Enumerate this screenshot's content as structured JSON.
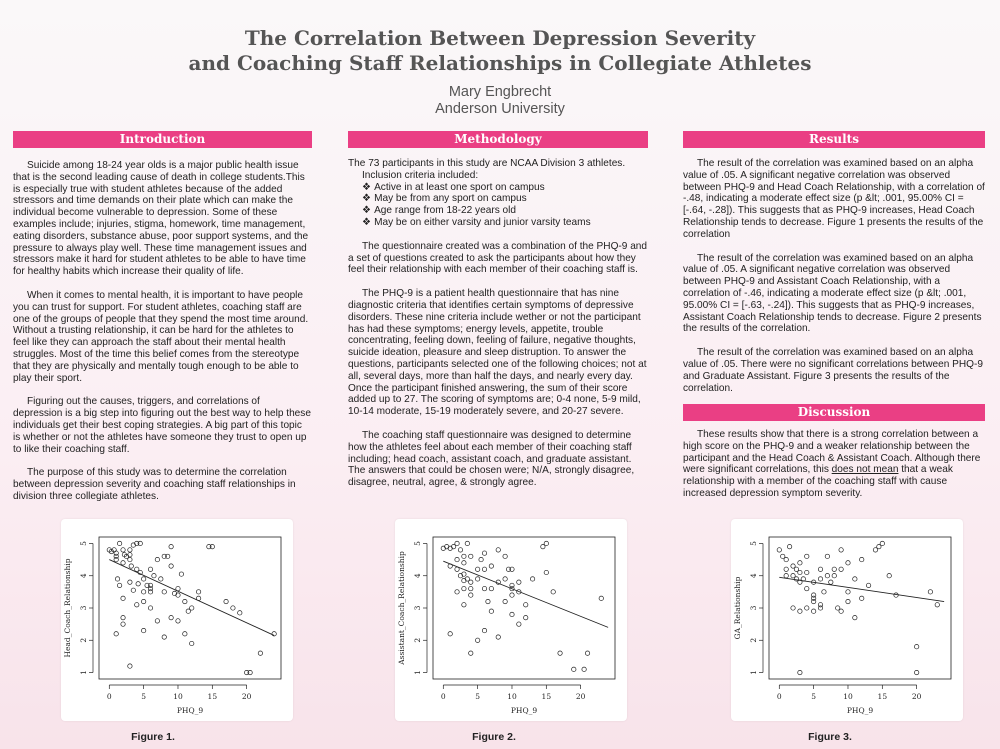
{
  "poster": {
    "title_line1": "The Correlation Between Depression Severity",
    "title_line2": "and Coaching Staff Relationships in Collegiate Athletes",
    "author": "Mary Engbrecht",
    "affiliation": "Anderson University"
  },
  "introduction": {
    "heading": "Introduction",
    "p1": "Suicide among 18-24 year olds is a major public health issue that is the second leading cause of death in college students.This is especially true with student athletes because of the added stressors and time demands on their plate which can make the individual become vulnerable to depression. Some of these examples include; injuries, stigma, homework, time management, eating disorders, substance abuse, poor support systems, and the pressure to always play well. These time management issues and stressors make it hard for student athletes to be able to have time for healthy habits which increase their quality of life.",
    "p2": "When it comes to mental health, it is important to have people you can trust for support. For student athletes, coaching staff are one of the groups of people that they spend the most time around. Without a trusting relationship, it can be hard for the athletes to feel like they can approach the staff about their mental health struggles. Most of the time this belief comes from the stereotype that they are physically and mentally tough enough to be able to play their sport.",
    "p3": "Figuring out the causes, triggers, and correlations of depression is a big step into figuring out the best way to help these individuals get their best coping strategies. A big part of this topic is whether or not the athletes have someone they trust to open up to like their coaching staff.",
    "p4": "The purpose of this study was to determine the correlation between depression severity and coaching staff relationships in division three collegiate athletes."
  },
  "methodology": {
    "heading": "Methodology",
    "intro": "The 73 participants in this study are NCAA Division 3 athletes.",
    "criteria_label": "Inclusion criteria included:",
    "bullet_glyph": "❖",
    "criteria": [
      "Active in at least one sport on campus",
      "May be from any sport on campus",
      "Age range from 18-22 years old",
      "May be on either varsity and junior varsity teams"
    ],
    "p2": "The questionnaire created was a combination of the PHQ-9 and a set of questions created to ask the participants about how they feel their relationship with each member of their coaching staff is.",
    "p3": "The PHQ-9 is a patient health questionnaire that has nine diagnostic criteria that identifies certain symptoms of depressive disorders. These nine criteria include wether or not the participant has had these symptoms; energy levels, appetite, trouble concentrating, feeling down, feeling of failure, negative thoughts, suicide ideation, pleasure and sleep distruption. To answer the questions, participants selected one of the following choices; not at all, several days, more than half the days, and nearly every day. Once the participant finished answering, the sum of their score added up to 27. The scoring of symptoms are; 0-4 none, 5-9 mild, 10-14 moderate, 15-19 moderately severe, and 20-27 severe.",
    "p4": "The coaching staff questionnaire was designed to determine how the athletes feel about each member of their coaching staff including; head coach, assistant coach, and graduate assistant. The answers that could be chosen were; N/A, strongly disagree, disagree, neutral, agree, & strongly agree."
  },
  "results": {
    "heading": "Results",
    "p1": "The result of the correlation was examined based on an alpha value of .05. A significant negative correlation was observed between PHQ-9 and Head Coach Relationship, with a correlation of -.48, indicating a moderate effect size (p &lt; .001, 95.00% CI = [-.64, -.28]). This suggests that as PHQ-9 increases, Head Coach Relationship tends to decrease. Figure 1 presents the results of the correlation",
    "p2": "The result of the correlation was examined based on an alpha value of .05. A significant negative correlation was observed between PHQ-9 and Assistant Coach Relationship, with a correlation of -.46, indicating a moderate effect size (p &lt; .001, 95.00% CI = [-.63, -.24]). This suggests that as PHQ-9 increases, Assistant Coach Relationship tends to decrease. Figure 2 presents the results of the correlation.",
    "p3": "The result of the correlation was examined based on an alpha value of .05. There were no significant correlations between PHQ-9 and Graduate Assistant. Figure 3 presents the results of the correlation."
  },
  "discussion": {
    "heading": "Discussion",
    "p1_a": "These results show that there is a strong correlation between a high score on the PHQ-9 and a weaker relationship between the participant and the Head Coach & Assistant Coach. Although there were significant correlations, this ",
    "p1_u": "does not mean",
    "p1_b": " that a weak relationship with a member of the coaching staff with cause increased depression symptom severity."
  },
  "chart_data": [
    {
      "type": "scatter",
      "caption": "Figure 1.",
      "xlabel": "PHQ_9",
      "ylabel": "Head_Coach_Relationship",
      "xlim": [
        -1.5,
        25
      ],
      "ylim": [
        0.8,
        5.2
      ],
      "xticks": [
        0,
        5,
        10,
        15,
        20
      ],
      "yticks": [
        1,
        2,
        3,
        4,
        5
      ],
      "trendline": {
        "x": [
          0,
          24
        ],
        "y": [
          4.5,
          2.15
        ]
      },
      "points": [
        [
          0,
          4.8
        ],
        [
          0.3,
          4.75
        ],
        [
          0.7,
          4.8
        ],
        [
          1,
          4.7
        ],
        [
          1,
          4.5
        ],
        [
          1.2,
          3.9
        ],
        [
          1.5,
          5
        ],
        [
          2,
          4.8
        ],
        [
          2.2,
          4.65
        ],
        [
          2,
          4.4
        ],
        [
          1.5,
          3.7
        ],
        [
          2.5,
          4.6
        ],
        [
          3,
          4.8
        ],
        [
          3,
          4.65
        ],
        [
          3.5,
          4.95
        ],
        [
          3.2,
          4.3
        ],
        [
          3,
          3.8
        ],
        [
          4,
          5
        ],
        [
          4.5,
          5
        ],
        [
          3.5,
          3.55
        ],
        [
          4.2,
          3.75
        ],
        [
          4.5,
          4.1
        ],
        [
          5,
          3.9
        ],
        [
          5,
          3.5
        ],
        [
          5,
          3.2
        ],
        [
          5.5,
          3.7
        ],
        [
          6,
          4.2
        ],
        [
          6,
          3.6
        ],
        [
          6,
          3
        ],
        [
          6.5,
          4
        ],
        [
          7,
          4.5
        ],
        [
          7.5,
          3.9
        ],
        [
          8,
          4.6
        ],
        [
          8,
          3.5
        ],
        [
          8.5,
          4.6
        ],
        [
          9,
          4.9
        ],
        [
          9,
          4.3
        ],
        [
          9.5,
          3.45
        ],
        [
          9,
          2.7
        ],
        [
          10,
          3.6
        ],
        [
          10,
          3.4
        ],
        [
          10.5,
          4.05
        ],
        [
          11,
          3.2
        ],
        [
          11.5,
          2.9
        ],
        [
          12,
          1.9
        ],
        [
          11,
          2.2
        ],
        [
          13,
          3.5
        ],
        [
          13,
          3.3
        ],
        [
          14.5,
          4.9
        ],
        [
          15,
          4.9
        ],
        [
          17,
          3.2
        ],
        [
          18,
          3
        ],
        [
          19,
          2.85
        ],
        [
          20,
          1
        ],
        [
          20.5,
          1
        ],
        [
          22,
          1.6
        ],
        [
          24,
          2.2
        ],
        [
          3,
          1.2
        ],
        [
          1,
          2.2
        ],
        [
          2,
          2.5
        ],
        [
          2,
          2.7
        ],
        [
          5,
          2.3
        ],
        [
          7,
          2.6
        ],
        [
          8,
          2.1
        ],
        [
          6,
          3.5
        ],
        [
          4,
          4.2
        ],
        [
          3,
          4.5
        ],
        [
          12,
          3
        ],
        [
          2,
          3.3
        ],
        [
          10,
          2.6
        ],
        [
          1,
          4.6
        ],
        [
          6,
          3.7
        ],
        [
          4,
          3.1
        ]
      ]
    },
    {
      "type": "scatter",
      "caption": "Figure 2.",
      "xlabel": "PHQ_9",
      "ylabel": "Assistant_Coach_Relationship",
      "xlim": [
        -1.5,
        25
      ],
      "ylim": [
        0.8,
        5.2
      ],
      "xticks": [
        0,
        5,
        10,
        15,
        20
      ],
      "yticks": [
        1,
        2,
        3,
        4,
        5
      ],
      "trendline": {
        "x": [
          0,
          24
        ],
        "y": [
          4.45,
          2.4
        ]
      },
      "points": [
        [
          0,
          4.85
        ],
        [
          0.5,
          4.9
        ],
        [
          1,
          4.85
        ],
        [
          1.5,
          4.9
        ],
        [
          2,
          5
        ],
        [
          2.5,
          4.8
        ],
        [
          3,
          4.6
        ],
        [
          3.5,
          5
        ],
        [
          4,
          4.6
        ],
        [
          1,
          4.3
        ],
        [
          2,
          4.2
        ],
        [
          2.5,
          4
        ],
        [
          3,
          4.05
        ],
        [
          3,
          3.85
        ],
        [
          3.5,
          3.9
        ],
        [
          4,
          3.8
        ],
        [
          4,
          3.6
        ],
        [
          5,
          4.2
        ],
        [
          5.5,
          4.5
        ],
        [
          6,
          4.7
        ],
        [
          6,
          3.6
        ],
        [
          6.5,
          3.2
        ],
        [
          7,
          4.3
        ],
        [
          7,
          2.9
        ],
        [
          8,
          3.8
        ],
        [
          9,
          3.2
        ],
        [
          9,
          4.6
        ],
        [
          9.5,
          4.2
        ],
        [
          10,
          4.2
        ],
        [
          10,
          3.4
        ],
        [
          10,
          3.6
        ],
        [
          10,
          2.8
        ],
        [
          11,
          3.5
        ],
        [
          11,
          2.5
        ],
        [
          12,
          3.1
        ],
        [
          13,
          3.9
        ],
        [
          14.5,
          4.9
        ],
        [
          15,
          5
        ],
        [
          15,
          4.1
        ],
        [
          16,
          3.5
        ],
        [
          17,
          1.6
        ],
        [
          19,
          1.1
        ],
        [
          20.5,
          1.1
        ],
        [
          21,
          1.6
        ],
        [
          23,
          3.3
        ],
        [
          5,
          2
        ],
        [
          6,
          2.3
        ],
        [
          8,
          2.1
        ],
        [
          4,
          1.6
        ],
        [
          3,
          3.1
        ],
        [
          2,
          3.5
        ],
        [
          1,
          2.2
        ],
        [
          7,
          3.6
        ],
        [
          12,
          2.7
        ],
        [
          2,
          4.5
        ],
        [
          3,
          4.4
        ],
        [
          5,
          3.9
        ],
        [
          8,
          4.8
        ],
        [
          4,
          3.4
        ],
        [
          6,
          4.2
        ],
        [
          9,
          3.9
        ],
        [
          11,
          3.8
        ],
        [
          10,
          3.7
        ],
        [
          3,
          3.6
        ]
      ]
    },
    {
      "type": "scatter",
      "caption": "Figure 3.",
      "xlabel": "PHQ_9",
      "ylabel": "GA_Relationship",
      "xlim": [
        -1.5,
        25
      ],
      "ylim": [
        0.8,
        5.2
      ],
      "xticks": [
        0,
        5,
        10,
        15,
        20
      ],
      "yticks": [
        1,
        2,
        3,
        4,
        5
      ],
      "trendline": {
        "x": [
          0,
          24
        ],
        "y": [
          3.95,
          3.2
        ]
      },
      "points": [
        [
          0,
          4.8
        ],
        [
          0.5,
          4.6
        ],
        [
          1,
          4.5
        ],
        [
          1.5,
          4.9
        ],
        [
          1,
          4.2
        ],
        [
          2,
          4.3
        ],
        [
          2.5,
          4.2
        ],
        [
          3,
          4.4
        ],
        [
          1,
          4
        ],
        [
          2,
          4
        ],
        [
          2.5,
          3.9
        ],
        [
          3,
          3.8
        ],
        [
          3,
          4.1
        ],
        [
          3.5,
          3.9
        ],
        [
          4,
          4.6
        ],
        [
          4,
          3.6
        ],
        [
          5,
          3.8
        ],
        [
          5,
          3.4
        ],
        [
          5,
          3.2
        ],
        [
          5,
          2.9
        ],
        [
          6,
          3
        ],
        [
          6,
          3.1
        ],
        [
          6.5,
          3.5
        ],
        [
          7,
          4.6
        ],
        [
          7.5,
          3.8
        ],
        [
          8,
          4
        ],
        [
          8,
          4.2
        ],
        [
          8.5,
          3
        ],
        [
          9,
          4.2
        ],
        [
          9,
          4.8
        ],
        [
          10,
          4.4
        ],
        [
          10,
          3.5
        ],
        [
          10,
          3.2
        ],
        [
          11,
          3.9
        ],
        [
          11,
          2.7
        ],
        [
          12,
          4.5
        ],
        [
          13,
          3.7
        ],
        [
          14,
          4.8
        ],
        [
          14.5,
          4.9
        ],
        [
          15,
          5
        ],
        [
          16,
          4
        ],
        [
          17,
          3.4
        ],
        [
          20,
          1.8
        ],
        [
          20,
          1
        ],
        [
          22,
          3.5
        ],
        [
          23,
          3.1
        ],
        [
          3,
          1
        ],
        [
          2,
          3
        ],
        [
          4,
          3
        ],
        [
          6,
          3.9
        ],
        [
          7,
          4
        ],
        [
          3,
          2.9
        ],
        [
          5,
          3.3
        ],
        [
          12,
          3.3
        ],
        [
          9,
          2.9
        ],
        [
          4,
          4.1
        ],
        [
          6,
          4.2
        ]
      ]
    }
  ]
}
